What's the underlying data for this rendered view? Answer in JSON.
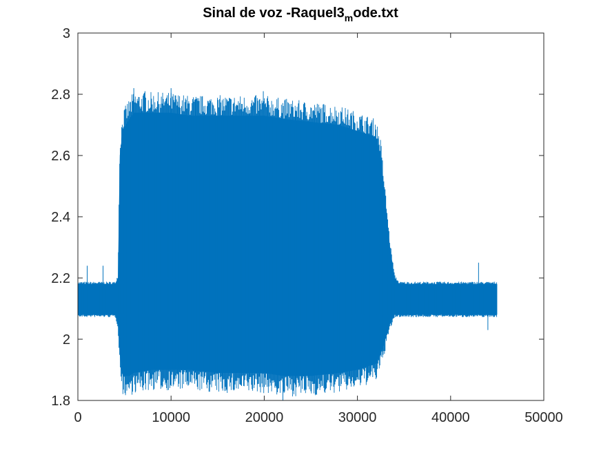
{
  "chart_data": {
    "type": "line",
    "title": "Sinal de voz -Raquel3",
    "title_subscript": "m",
    "title_suffix": "ode.txt",
    "xlabel": "",
    "ylabel": "",
    "xlim": [
      0,
      50000
    ],
    "ylim": [
      1.8,
      3
    ],
    "xticks": [
      0,
      10000,
      20000,
      30000,
      40000,
      50000
    ],
    "xtick_labels": [
      "0",
      "10000",
      "20000",
      "30000",
      "40000",
      "50000"
    ],
    "yticks": [
      1.8,
      2,
      2.2,
      2.4,
      2.6,
      2.8,
      3
    ],
    "ytick_labels": [
      "1.8",
      "2",
      "2.2",
      "2.4",
      "2.6",
      "2.8",
      "3"
    ],
    "grid": false,
    "series_color": "#0072BD",
    "series": [
      {
        "x": [
          0,
          1000,
          2000,
          3000,
          4000,
          4300,
          4500,
          4800,
          5500,
          6000,
          8000,
          10000,
          12000,
          15000,
          18000,
          20000,
          22000,
          25000,
          28000,
          30000,
          32000,
          32500,
          33000,
          33500,
          34000,
          34500,
          36000,
          38000,
          40000,
          42000,
          44000,
          45000
        ],
        "upper": [
          2.18,
          2.18,
          2.18,
          2.18,
          2.18,
          2.2,
          2.6,
          2.68,
          2.72,
          2.74,
          2.74,
          2.74,
          2.73,
          2.73,
          2.73,
          2.73,
          2.72,
          2.71,
          2.7,
          2.68,
          2.66,
          2.6,
          2.45,
          2.3,
          2.2,
          2.18,
          2.18,
          2.18,
          2.18,
          2.18,
          2.18,
          2.18
        ],
        "lower": [
          2.08,
          2.08,
          2.08,
          2.08,
          2.08,
          2.05,
          1.95,
          1.88,
          1.88,
          1.89,
          1.9,
          1.9,
          1.9,
          1.89,
          1.89,
          1.89,
          1.88,
          1.88,
          1.89,
          1.9,
          1.92,
          1.95,
          2.0,
          2.05,
          2.08,
          2.08,
          2.08,
          2.08,
          2.08,
          2.08,
          2.08,
          2.08
        ],
        "peaks": [
          {
            "x": 6000,
            "y": 2.82
          },
          {
            "x": 7200,
            "y": 2.81
          },
          {
            "x": 10000,
            "y": 2.82
          },
          {
            "x": 19900,
            "y": 2.81
          },
          {
            "x": 22000,
            "y": 1.8
          },
          {
            "x": 6200,
            "y": 1.83
          },
          {
            "x": 1000,
            "y": 2.24
          },
          {
            "x": 2700,
            "y": 2.24
          },
          {
            "x": 43000,
            "y": 2.25
          },
          {
            "x": 44000,
            "y": 2.03
          }
        ]
      }
    ]
  }
}
